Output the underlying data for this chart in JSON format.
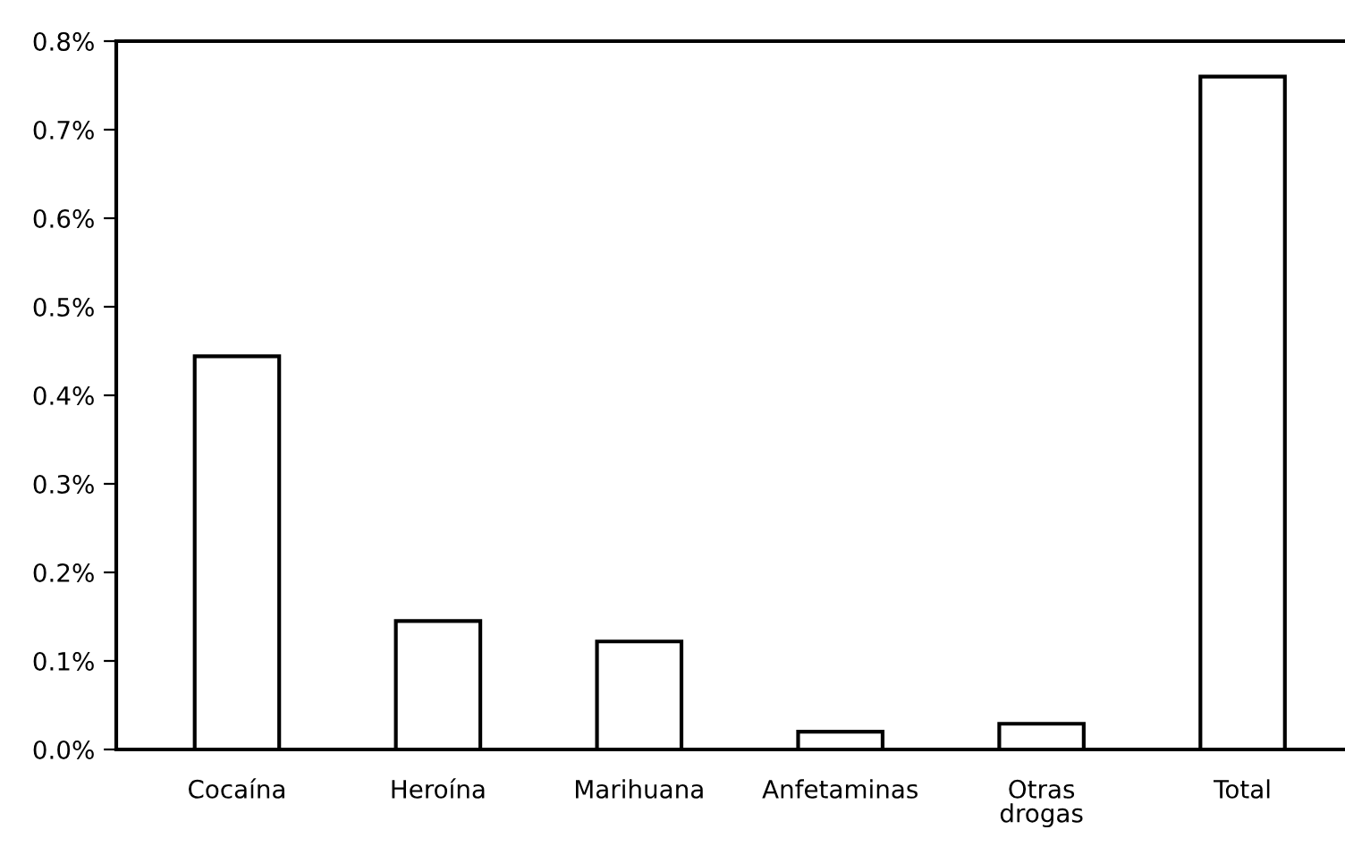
{
  "chart_data": {
    "type": "bar",
    "categories": [
      "Cocaína",
      "Heroína",
      "Marihuana",
      "Anfetaminas",
      "Otras\ndrogas",
      "Total"
    ],
    "values": [
      0.444,
      0.145,
      0.122,
      0.02,
      0.029,
      0.76
    ],
    "color": "#ffffff",
    "ylim": [
      0,
      0.8
    ],
    "yticks": [
      {
        "value": 0,
        "label": "0.0%"
      },
      {
        "value": 0.1,
        "label": "0.1%"
      },
      {
        "value": 0.2,
        "label": "0.2%"
      },
      {
        "value": 0.3,
        "label": "0.3%"
      },
      {
        "value": 0.4,
        "label": "0.4%"
      },
      {
        "value": 0.5,
        "label": "0.5%"
      },
      {
        "value": 0.6,
        "label": "0.6%"
      },
      {
        "value": 0.7,
        "label": "0.7%"
      },
      {
        "value": 0.8,
        "label": "0.8%"
      }
    ],
    "grid": false
  }
}
